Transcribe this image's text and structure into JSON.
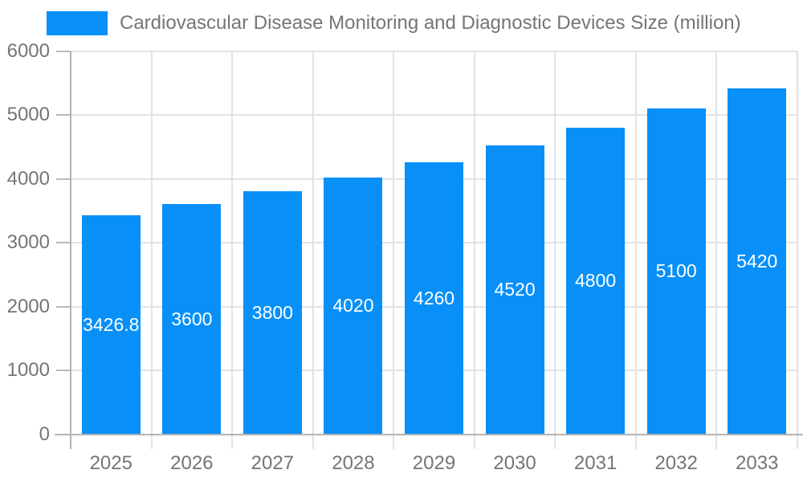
{
  "chart_data": {
    "type": "bar",
    "title": "Cardiovascular Disease Monitoring and Diagnostic Devices Size (million)",
    "categories": [
      "2025",
      "2026",
      "2027",
      "2028",
      "2029",
      "2030",
      "2031",
      "2032",
      "2033"
    ],
    "values": [
      3426.8,
      3600,
      3800,
      4020,
      4260,
      4520,
      4800,
      5100,
      5420
    ],
    "value_labels": [
      "3426.8",
      "3600",
      "3800",
      "4020",
      "4260",
      "4520",
      "4800",
      "5100",
      "5420"
    ],
    "xlabel": "",
    "ylabel": "",
    "ylim": [
      0,
      6000
    ],
    "y_ticks": [
      0,
      1000,
      2000,
      3000,
      4000,
      5000,
      6000
    ],
    "y_tick_labels": [
      "0",
      "1000",
      "2000",
      "3000",
      "4000",
      "5000",
      "6000"
    ],
    "grid": true,
    "legend_position": "top-left",
    "value_label_placement": "inside-center",
    "colors": {
      "bar": "#0890f8",
      "title_text": "#757575",
      "axis_text": "#757575",
      "gridline": "#e2e2e2",
      "axis_line": "#b3b3b3",
      "tick": "#b9b9b9",
      "value_text": "#ffffff",
      "background": "#ffffff"
    }
  }
}
